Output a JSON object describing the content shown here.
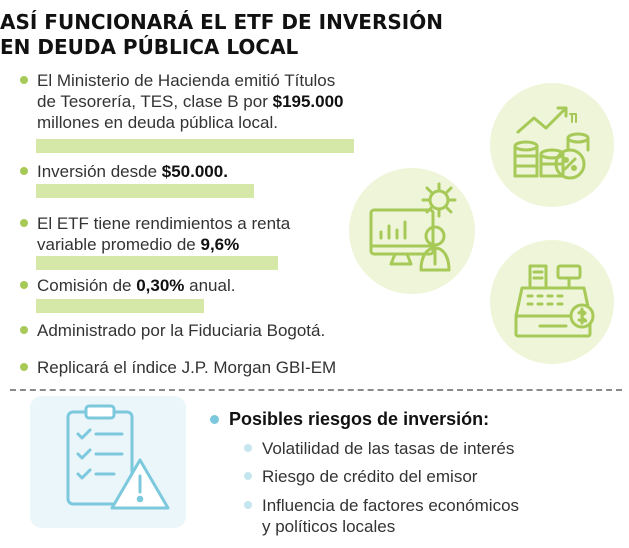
{
  "title": {
    "line1": "ASÍ FUNCIONARÁ EL ETF DE INVERSIÓN",
    "line2": "EN DEUDA PÚBLICA LOCAL"
  },
  "bullets": [
    {
      "lines": [
        "El Ministerio de Hacienda emitió Títulos",
        "de Tesorería, TES, clase B por ",
        "millones en deuda pública local."
      ],
      "bold": "$195.000"
    },
    {
      "lines": [
        "Inversión desde "
      ],
      "bold": "$50.000."
    },
    {
      "lines": [
        "El ETF tiene rendimientos a renta",
        "variable promedio de "
      ],
      "bold": "9,6%"
    },
    {
      "lines": [
        "Comisión de ",
        " anual."
      ],
      "bold": "0,30%"
    },
    {
      "lines": [
        "Administrado por la Fiduciaria Bogotá."
      ]
    },
    {
      "lines": [
        "Replicará el índice J.P. Morgan GBI-EM"
      ]
    }
  ],
  "risks": {
    "heading": "Posibles riesgos de inversión:",
    "items": [
      "Volatilidad de las tasas de interés",
      "Riesgo de crédito del emisor",
      "Influencia de factores económicos",
      "y políticos locales"
    ]
  },
  "icons": [
    "coins-growth-icon",
    "analyst-computer-icon",
    "cash-register-icon",
    "checklist-warning-icon"
  ],
  "colors": {
    "accent_green": "#a7c957",
    "highlight_green": "#d6e8a8",
    "circle_green": "#eef5d8",
    "risk_blue": "#7cc8dc"
  }
}
